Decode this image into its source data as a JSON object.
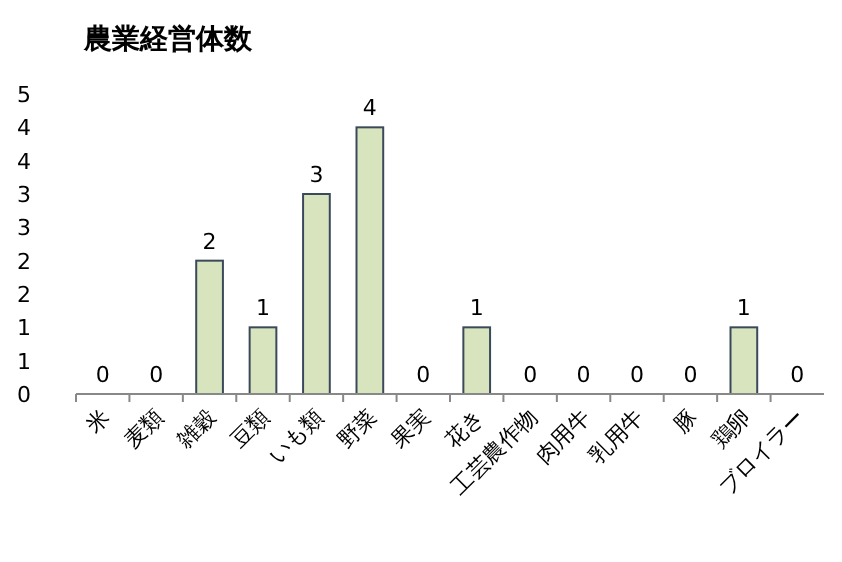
{
  "chart_data": {
    "type": "bar",
    "title": "農業経営体数",
    "categories": [
      "米",
      "麦類",
      "雑穀",
      "豆類",
      "いも類",
      "野菜",
      "果実",
      "花き",
      "工芸農作物",
      "肉用牛",
      "乳用牛",
      "豚",
      "鶏卵",
      "ブロイラー"
    ],
    "values": [
      0,
      0,
      2,
      1,
      3,
      4,
      0,
      1,
      0,
      0,
      0,
      0,
      1,
      0
    ],
    "color": "#d7e4bd",
    "data_labels": true,
    "ylim": [
      0,
      4.5
    ],
    "yticks": [
      0,
      {
        "value": 0.5,
        "label": "1"
      },
      1,
      {
        "value": 1.5,
        "label": "2"
      },
      2,
      {
        "value": 2.5,
        "label": "3"
      },
      3,
      {
        "value": 3.5,
        "label": "4"
      },
      4,
      {
        "value": 4.5,
        "label": "5"
      }
    ],
    "grid": false
  }
}
